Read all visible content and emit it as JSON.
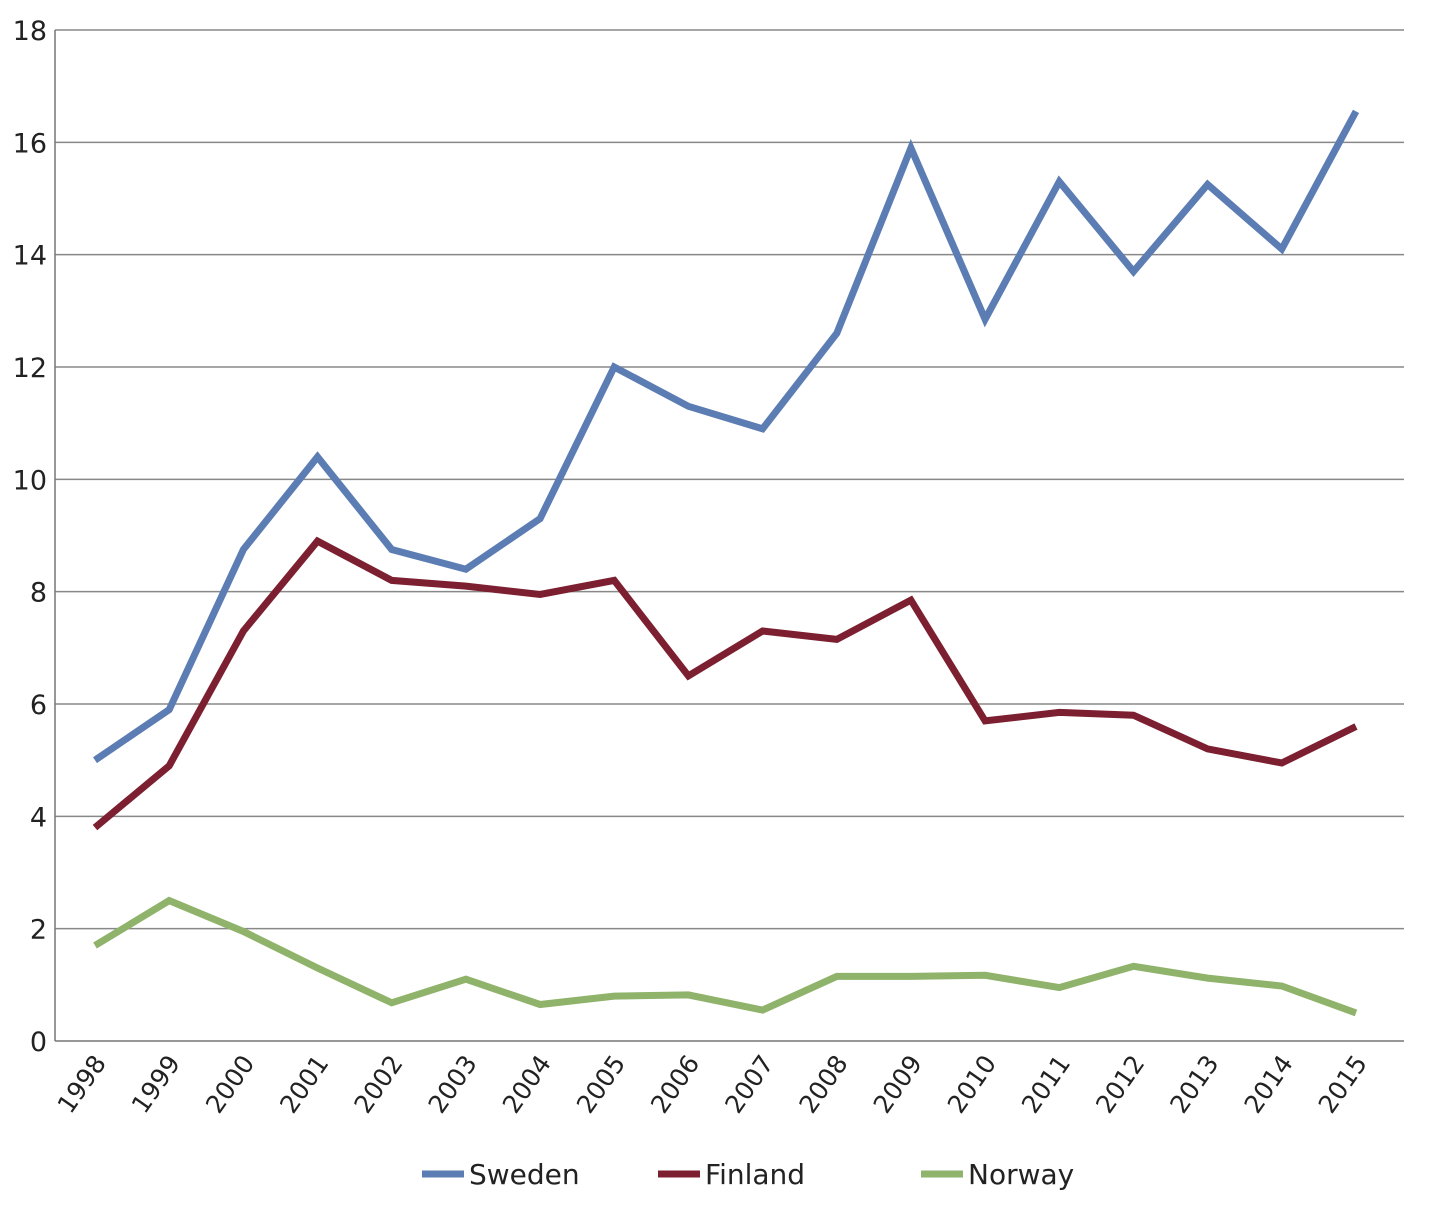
{
  "chart_data": {
    "type": "line",
    "title": "",
    "xlabel": "",
    "ylabel": "",
    "x": [
      "1998",
      "1999",
      "2000",
      "2001",
      "2002",
      "2003",
      "2004",
      "2005",
      "2006",
      "2007",
      "2008",
      "2009",
      "2010",
      "2011",
      "2012",
      "2013",
      "2014",
      "2015"
    ],
    "ylim": [
      0,
      18
    ],
    "yticks": [
      "0",
      "2",
      "4",
      "6",
      "8",
      "10",
      "12",
      "14",
      "16",
      "18"
    ],
    "grid": true,
    "legend_position": "bottom-center",
    "series": [
      {
        "name": "Sweden",
        "color": "#5b7db3",
        "values": [
          5.0,
          5.9,
          8.75,
          10.4,
          8.75,
          8.4,
          9.3,
          12.0,
          11.3,
          10.9,
          12.6,
          15.9,
          12.85,
          15.3,
          13.7,
          15.25,
          14.1,
          16.55
        ]
      },
      {
        "name": "Finland",
        "color": "#7c1f30",
        "values": [
          3.8,
          4.9,
          7.3,
          8.9,
          8.2,
          8.1,
          7.95,
          8.2,
          6.5,
          7.3,
          7.15,
          7.85,
          5.7,
          5.85,
          5.8,
          5.2,
          4.95,
          5.6
        ]
      },
      {
        "name": "Norway",
        "color": "#8fb36a",
        "values": [
          1.7,
          2.5,
          1.95,
          1.3,
          0.68,
          1.1,
          0.65,
          0.8,
          0.82,
          0.55,
          1.15,
          1.15,
          1.17,
          0.95,
          1.33,
          1.12,
          0.98,
          0.5
        ]
      }
    ]
  }
}
